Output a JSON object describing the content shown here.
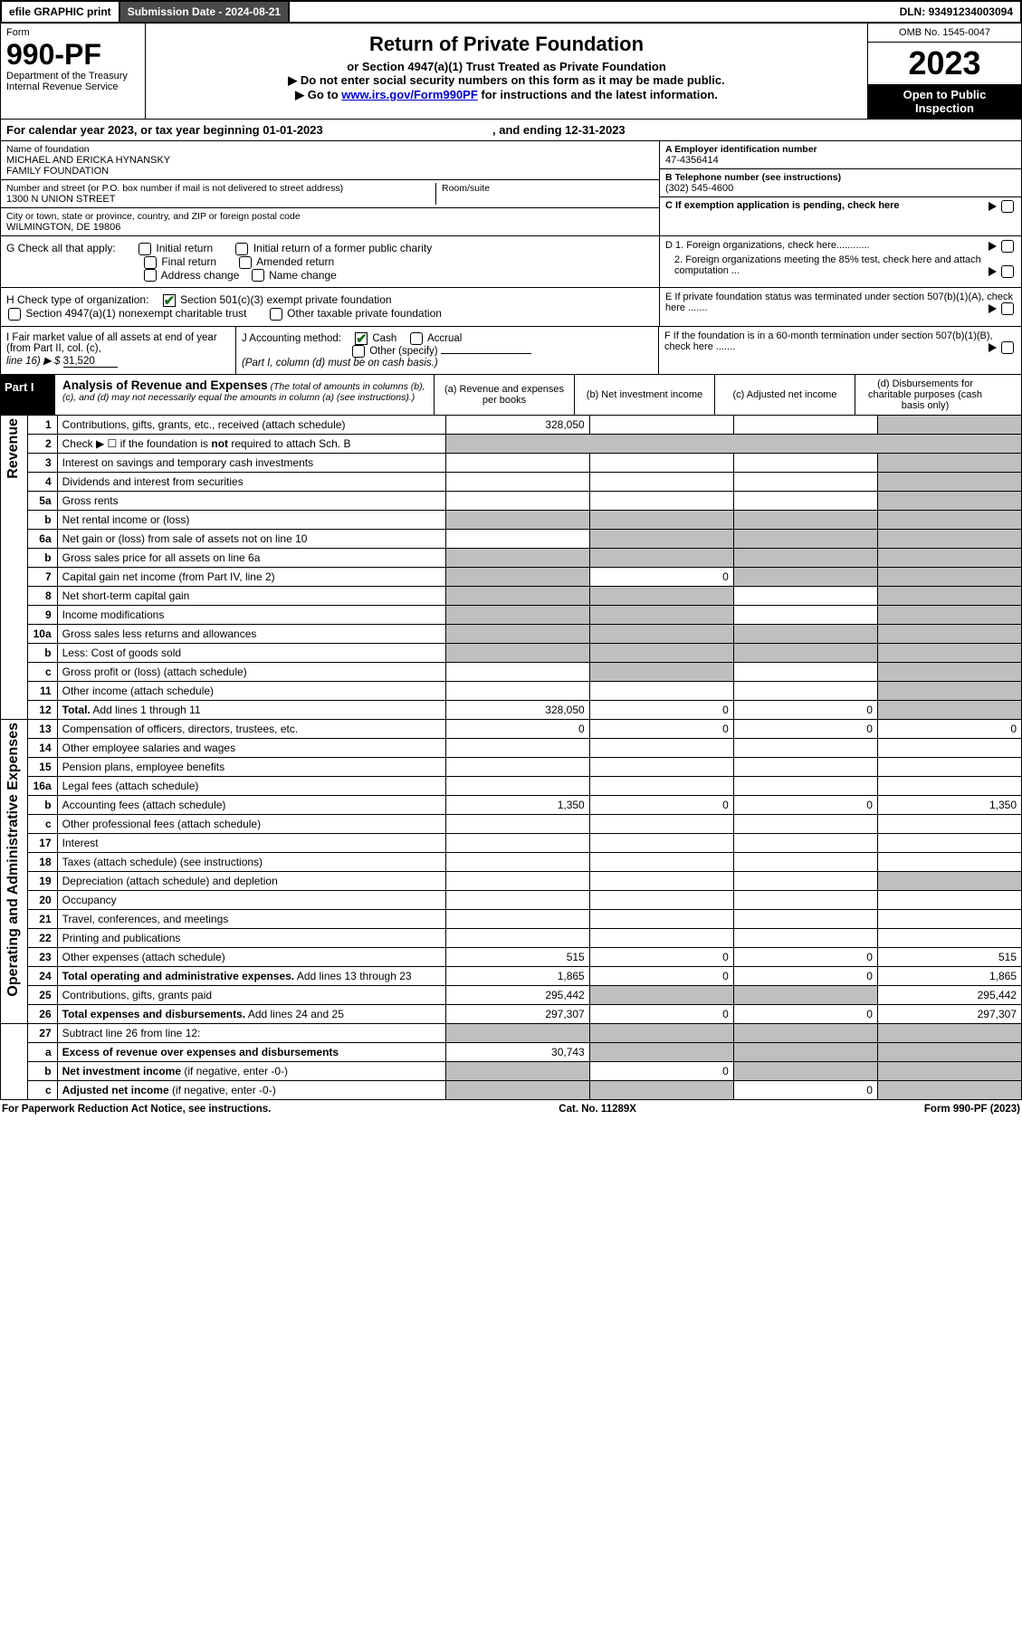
{
  "topbar": {
    "efile": "efile GRAPHIC print",
    "subdate_lbl": "Submission Date - ",
    "subdate": "2024-08-21",
    "dln_lbl": "DLN: ",
    "dln": "93491234003094"
  },
  "header": {
    "form_word": "Form",
    "form_no": "990-PF",
    "dept1": "Department of the Treasury",
    "dept2": "Internal Revenue Service",
    "title": "Return of Private Foundation",
    "subtitle": "or Section 4947(a)(1) Trust Treated as Private Foundation",
    "note1": "▶ Do not enter social security numbers on this form as it may be made public.",
    "note2_pre": "▶ Go to ",
    "note2_link": "www.irs.gov/Form990PF",
    "note2_post": " for instructions and the latest information.",
    "omb": "OMB No. 1545-0047",
    "year": "2023",
    "open1": "Open to Public",
    "open2": "Inspection"
  },
  "calrow": {
    "pre": "For calendar year 2023, or tax year beginning ",
    "begin": "01-01-2023",
    "mid": " , and ending ",
    "end": "12-31-2023"
  },
  "org": {
    "name_lbl": "Name of foundation",
    "name1": "MICHAEL AND ERICKA HYNANSKY",
    "name2": "FAMILY FOUNDATION",
    "addr_lbl": "Number and street (or P.O. box number if mail is not delivered to street address)",
    "addr": "1300 N UNION STREET",
    "room_lbl": "Room/suite",
    "city_lbl": "City or town, state or province, country, and ZIP or foreign postal code",
    "city": "WILMINGTON, DE  19806",
    "ein_lbl": "A Employer identification number",
    "ein": "47-4356414",
    "tel_lbl": "B Telephone number (see instructions)",
    "tel": "(302) 545-4600",
    "c_lbl": "C If exemption application is pending, check here",
    "d1": "D 1. Foreign organizations, check here............",
    "d2": "2. Foreign organizations meeting the 85% test, check here and attach computation ...",
    "e_lbl": "E If private foundation status was terminated under section 507(b)(1)(A), check here .......",
    "f_lbl": "F If the foundation is in a 60-month termination under section 507(b)(1)(B), check here ......."
  },
  "g": {
    "lbl": "G Check all that apply:",
    "o1": "Initial return",
    "o2": "Initial return of a former public charity",
    "o3": "Final return",
    "o4": "Amended return",
    "o5": "Address change",
    "o6": "Name change"
  },
  "h": {
    "lbl": "H Check type of organization:",
    "o1": "Section 501(c)(3) exempt private foundation",
    "o2": "Section 4947(a)(1) nonexempt charitable trust",
    "o3": "Other taxable private foundation"
  },
  "i": {
    "lbl1": "I Fair market value of all assets at end of year (from Part II, col. (c),",
    "lbl2": "line 16) ▶ $",
    "val": "31,520"
  },
  "j": {
    "lbl": "J Accounting method:",
    "o1": "Cash",
    "o2": "Accrual",
    "o3": "Other (specify)",
    "note": "(Part I, column (d) must be on cash basis.)"
  },
  "part1": {
    "label": "Part I",
    "title": "Analysis of Revenue and Expenses",
    "subtitle": " (The total of amounts in columns (b), (c), and (d) may not necessarily equal the amounts in column (a) (see instructions).)",
    "colA": "(a) Revenue and expenses per books",
    "colB": "(b) Net investment income",
    "colC": "(c) Adjusted net income",
    "colD": "(d) Disbursements for charitable purposes (cash basis only)"
  },
  "sides": {
    "rev": "Revenue",
    "exp": "Operating and Administrative Expenses"
  },
  "lines": [
    {
      "n": "1",
      "d": "Contributions, gifts, grants, etc., received (attach schedule)",
      "a": "328,050",
      "b": "",
      "c": "",
      "dgrey": true
    },
    {
      "n": "2",
      "d": "Check ▶ ☐ if the foundation is <b>not</b> required to attach Sch. B",
      "noamt": true
    },
    {
      "n": "3",
      "d": "Interest on savings and temporary cash investments",
      "a": "",
      "b": "",
      "c": "",
      "dgrey": true
    },
    {
      "n": "4",
      "d": "Dividends and interest from securities",
      "a": "",
      "b": "",
      "c": "",
      "dgrey": true
    },
    {
      "n": "5a",
      "d": "Gross rents",
      "a": "",
      "b": "",
      "c": "",
      "dgrey": true
    },
    {
      "n": "b",
      "d": "Net rental income or (loss)",
      "allgrey": true,
      "inset": true
    },
    {
      "n": "6a",
      "d": "Net gain or (loss) from sale of assets not on line 10",
      "a": "",
      "bgrey": true,
      "cgrey": true,
      "dgrey": true
    },
    {
      "n": "b",
      "d": "Gross sales price for all assets on line 6a",
      "allgrey": true,
      "inset": true
    },
    {
      "n": "7",
      "d": "Capital gain net income (from Part IV, line 2)",
      "agrey": true,
      "b": "0",
      "cgrey": true,
      "dgrey": true
    },
    {
      "n": "8",
      "d": "Net short-term capital gain",
      "agrey": true,
      "bgrey": true,
      "c": "",
      "dgrey": true
    },
    {
      "n": "9",
      "d": "Income modifications",
      "agrey": true,
      "bgrey": true,
      "c": "",
      "dgrey": true
    },
    {
      "n": "10a",
      "d": "Gross sales less returns and allowances",
      "allgrey": true,
      "inset": true
    },
    {
      "n": "b",
      "d": "Less: Cost of goods sold",
      "allgrey": true,
      "inset": true
    },
    {
      "n": "c",
      "d": "Gross profit or (loss) (attach schedule)",
      "a": "",
      "bgrey": true,
      "c": "",
      "dgrey": true
    },
    {
      "n": "11",
      "d": "Other income (attach schedule)",
      "a": "",
      "b": "",
      "c": "",
      "dgrey": true
    },
    {
      "n": "12",
      "d": "<b>Total.</b> Add lines 1 through 11",
      "a": "328,050",
      "b": "0",
      "c": "0",
      "dgrey": true
    }
  ],
  "explines": [
    {
      "n": "13",
      "d": "Compensation of officers, directors, trustees, etc.",
      "a": "0",
      "b": "0",
      "c": "0",
      "dv": "0"
    },
    {
      "n": "14",
      "d": "Other employee salaries and wages",
      "a": "",
      "b": "",
      "c": "",
      "dv": ""
    },
    {
      "n": "15",
      "d": "Pension plans, employee benefits",
      "a": "",
      "b": "",
      "c": "",
      "dv": ""
    },
    {
      "n": "16a",
      "d": "Legal fees (attach schedule)",
      "a": "",
      "b": "",
      "c": "",
      "dv": ""
    },
    {
      "n": "b",
      "d": "Accounting fees (attach schedule)",
      "a": "1,350",
      "b": "0",
      "c": "0",
      "dv": "1,350"
    },
    {
      "n": "c",
      "d": "Other professional fees (attach schedule)",
      "a": "",
      "b": "",
      "c": "",
      "dv": ""
    },
    {
      "n": "17",
      "d": "Interest",
      "a": "",
      "b": "",
      "c": "",
      "dv": ""
    },
    {
      "n": "18",
      "d": "Taxes (attach schedule) (see instructions)",
      "a": "",
      "b": "",
      "c": "",
      "dv": ""
    },
    {
      "n": "19",
      "d": "Depreciation (attach schedule) and depletion",
      "a": "",
      "b": "",
      "c": "",
      "dgrey": true
    },
    {
      "n": "20",
      "d": "Occupancy",
      "a": "",
      "b": "",
      "c": "",
      "dv": ""
    },
    {
      "n": "21",
      "d": "Travel, conferences, and meetings",
      "a": "",
      "b": "",
      "c": "",
      "dv": ""
    },
    {
      "n": "22",
      "d": "Printing and publications",
      "a": "",
      "b": "",
      "c": "",
      "dv": ""
    },
    {
      "n": "23",
      "d": "Other expenses (attach schedule)",
      "a": "515",
      "b": "0",
      "c": "0",
      "dv": "515"
    },
    {
      "n": "24",
      "d": "<b>Total operating and administrative expenses.</b> Add lines 13 through 23",
      "a": "1,865",
      "b": "0",
      "c": "0",
      "dv": "1,865"
    },
    {
      "n": "25",
      "d": "Contributions, gifts, grants paid",
      "a": "295,442",
      "bgrey": true,
      "cgrey": true,
      "dv": "295,442"
    },
    {
      "n": "26",
      "d": "<b>Total expenses and disbursements.</b> Add lines 24 and 25",
      "a": "297,307",
      "b": "0",
      "c": "0",
      "dv": "297,307"
    }
  ],
  "botlines": [
    {
      "n": "27",
      "d": "Subtract line 26 from line 12:",
      "allgrey_rest": true
    },
    {
      "n": "a",
      "d": "<b>Excess of revenue over expenses and disbursements</b>",
      "a": "30,743",
      "bgrey": true,
      "cgrey": true,
      "dgrey": true
    },
    {
      "n": "b",
      "d": "<b>Net investment income</b> (if negative, enter -0-)",
      "agrey": true,
      "b": "0",
      "cgrey": true,
      "dgrey": true
    },
    {
      "n": "c",
      "d": "<b>Adjusted net income</b> (if negative, enter -0-)",
      "agrey": true,
      "bgrey": true,
      "c": "0",
      "dgrey": true
    }
  ],
  "footer": {
    "left": "For Paperwork Reduction Act Notice, see instructions.",
    "mid": "Cat. No. 11289X",
    "right_pre": "Form ",
    "right_form": "990-PF",
    "right_post": " (2023)"
  }
}
